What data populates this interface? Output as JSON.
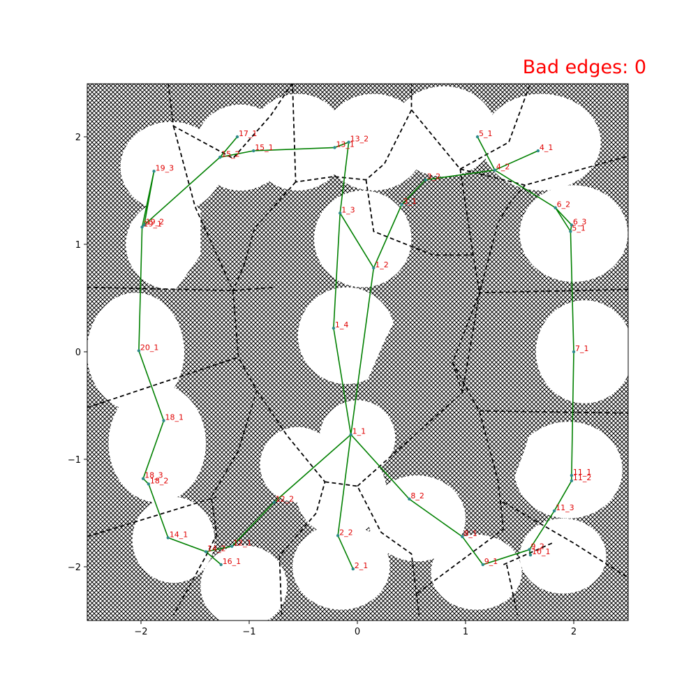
{
  "title": "Bad edges: 0",
  "colors": {
    "title": "#ff0000",
    "route": "#008000",
    "partition": "#000000",
    "label": "#e00000",
    "node": "#2e8b8b",
    "hatch": "#000000"
  },
  "chart_data": {
    "type": "scatter",
    "title": "Bad edges: 0",
    "xlabel": "",
    "ylabel": "",
    "xlim": [
      -2.5,
      2.5
    ],
    "ylim": [
      -2.5,
      2.5
    ],
    "xticks": [
      -2,
      -1,
      0,
      1,
      2
    ],
    "yticks": [
      -2,
      -1,
      0,
      1,
      2
    ],
    "xtick_labels": [
      "−2",
      "−1",
      "0",
      "1",
      "2"
    ],
    "ytick_labels": [
      "−2",
      "−1",
      "0",
      "1",
      "2"
    ],
    "grid": false,
    "nodes": [
      {
        "label": "1_1",
        "x": -0.06,
        "y": -0.77
      },
      {
        "label": "1_2",
        "x": 0.15,
        "y": 0.78
      },
      {
        "label": "1_3",
        "x": -0.16,
        "y": 1.29
      },
      {
        "label": "1_4",
        "x": -0.22,
        "y": 0.22
      },
      {
        "label": "2_1",
        "x": -0.04,
        "y": -2.02
      },
      {
        "label": "2_2",
        "x": -0.18,
        "y": -1.71
      },
      {
        "label": "3_1",
        "x": 0.41,
        "y": 1.37
      },
      {
        "label": "3_2",
        "x": 0.63,
        "y": 1.6
      },
      {
        "label": "4_1",
        "x": 1.67,
        "y": 1.87
      },
      {
        "label": "4_2",
        "x": 1.27,
        "y": 1.69
      },
      {
        "label": "5_1",
        "x": 1.11,
        "y": 2.0
      },
      {
        "label": "5_1",
        "x": 1.97,
        "y": 1.12
      },
      {
        "label": "6_2",
        "x": 1.83,
        "y": 1.34
      },
      {
        "label": "6_3",
        "x": 1.98,
        "y": 1.18
      },
      {
        "label": "7_1",
        "x": 2.0,
        "y": 0.0
      },
      {
        "label": "8_1",
        "x": 0.97,
        "y": -1.72
      },
      {
        "label": "8_2",
        "x": 0.48,
        "y": -1.37
      },
      {
        "label": "9_1",
        "x": 1.16,
        "y": -1.98
      },
      {
        "label": "9_2",
        "x": 1.59,
        "y": -1.84
      },
      {
        "label": "10_1",
        "x": 1.6,
        "y": -1.89
      },
      {
        "label": "11_1",
        "x": 1.98,
        "y": -1.15
      },
      {
        "label": "11_2",
        "x": 1.98,
        "y": -1.2
      },
      {
        "label": "11_3",
        "x": 1.82,
        "y": -1.48
      },
      {
        "label": "12_1",
        "x": -1.16,
        "y": -1.81
      },
      {
        "label": "12_2",
        "x": -0.77,
        "y": -1.4
      },
      {
        "label": "13_1",
        "x": -0.21,
        "y": 1.9
      },
      {
        "label": "13_2",
        "x": -0.08,
        "y": 1.95
      },
      {
        "label": "14_1",
        "x": -1.75,
        "y": -1.73
      },
      {
        "label": "14_2",
        "x": -1.4,
        "y": -1.86
      },
      {
        "label": "15_1",
        "x": -0.96,
        "y": 1.87
      },
      {
        "label": "15_2",
        "x": -1.27,
        "y": 1.81
      },
      {
        "label": "16_1",
        "x": -1.26,
        "y": -1.98
      },
      {
        "label": "17_1",
        "x": -1.11,
        "y": 2.0
      },
      {
        "label": "18_1",
        "x": -1.79,
        "y": -0.64
      },
      {
        "label": "18_2",
        "x": -1.93,
        "y": -1.23
      },
      {
        "label": "18_3",
        "x": -1.98,
        "y": -1.18
      },
      {
        "label": "19_1",
        "x": -1.99,
        "y": 1.16
      },
      {
        "label": "19_2",
        "x": -1.97,
        "y": 1.18
      },
      {
        "label": "19_3",
        "x": -1.88,
        "y": 1.68
      },
      {
        "label": "20_1",
        "x": -2.02,
        "y": 0.01
      }
    ],
    "routes": [
      [
        [
          -0.04,
          -2.02
        ],
        [
          -0.18,
          -1.71
        ],
        [
          -0.06,
          -0.77
        ],
        [
          0.15,
          0.78
        ],
        [
          0.41,
          1.37
        ],
        [
          0.63,
          1.6
        ],
        [
          1.27,
          1.69
        ],
        [
          1.83,
          1.34
        ],
        [
          1.98,
          1.18
        ],
        [
          1.97,
          1.12
        ],
        [
          2.0,
          0.0
        ],
        [
          1.98,
          -1.15
        ],
        [
          1.98,
          -1.2
        ],
        [
          1.82,
          -1.48
        ],
        [
          1.59,
          -1.84
        ],
        [
          1.16,
          -1.98
        ],
        [
          0.97,
          -1.72
        ],
        [
          0.48,
          -1.37
        ],
        [
          -0.06,
          -0.77
        ],
        [
          -0.77,
          -1.4
        ],
        [
          -1.16,
          -1.81
        ],
        [
          -1.4,
          -1.86
        ],
        [
          -1.75,
          -1.73
        ],
        [
          -1.93,
          -1.23
        ],
        [
          -1.98,
          -1.18
        ],
        [
          -1.79,
          -0.64
        ],
        [
          -2.02,
          0.01
        ],
        [
          -1.99,
          1.16
        ],
        [
          -1.97,
          1.18
        ],
        [
          -1.27,
          1.81
        ],
        [
          -0.96,
          1.87
        ],
        [
          -0.21,
          1.9
        ],
        [
          -0.08,
          1.95
        ],
        [
          -0.16,
          1.29
        ],
        [
          -0.22,
          0.22
        ],
        [
          -0.06,
          -0.77
        ]
      ],
      [
        [
          -1.4,
          -1.86
        ],
        [
          -1.26,
          -1.98
        ]
      ],
      [
        [
          -1.27,
          1.81
        ],
        [
          -1.11,
          2.0
        ]
      ],
      [
        [
          -1.99,
          1.16
        ],
        [
          -1.88,
          1.68
        ],
        [
          -1.97,
          1.18
        ]
      ],
      [
        [
          -0.16,
          1.29
        ],
        [
          0.15,
          0.78
        ]
      ],
      [
        [
          1.27,
          1.69
        ],
        [
          1.11,
          2.0
        ]
      ],
      [
        [
          1.27,
          1.69
        ],
        [
          1.67,
          1.87
        ]
      ],
      [
        [
          1.59,
          -1.84
        ],
        [
          1.6,
          -1.89
        ]
      ],
      [
        [
          1.83,
          1.34
        ],
        [
          1.97,
          1.12
        ]
      ]
    ],
    "partitions": [
      [
        [
          -2.5,
          0.6
        ],
        [
          -1.15,
          0.57
        ],
        [
          -0.76,
          0.6
        ]
      ],
      [
        [
          -1.15,
          0.57
        ],
        [
          -1.1,
          -0.05
        ],
        [
          -0.93,
          -0.36
        ],
        [
          -1.1,
          -0.92
        ],
        [
          -1.35,
          -1.35
        ],
        [
          -1.3,
          -1.7
        ],
        [
          -1.4,
          -1.9
        ],
        [
          -1.7,
          -2.45
        ]
      ],
      [
        [
          -2.5,
          -0.52
        ],
        [
          -1.1,
          -0.05
        ]
      ],
      [
        [
          -2.5,
          -1.72
        ],
        [
          -1.3,
          -1.35
        ]
      ],
      [
        [
          -0.93,
          -0.36
        ],
        [
          -0.65,
          -0.78
        ],
        [
          -0.3,
          -1.21
        ],
        [
          -0.38,
          -1.5
        ],
        [
          -0.72,
          -1.9
        ],
        [
          -0.7,
          -2.45
        ]
      ],
      [
        [
          -0.3,
          -1.21
        ],
        [
          0.0,
          -1.25
        ],
        [
          0.22,
          -1.68
        ],
        [
          0.5,
          -1.88
        ],
        [
          0.57,
          -2.45
        ]
      ],
      [
        [
          0.0,
          -1.25
        ],
        [
          0.97,
          -0.38
        ],
        [
          1.13,
          0.55
        ],
        [
          1.07,
          0.9
        ],
        [
          0.95,
          1.7
        ],
        [
          0.5,
          2.25
        ],
        [
          0.5,
          2.5
        ]
      ],
      [
        [
          0.97,
          -0.38
        ],
        [
          0.88,
          -0.1
        ],
        [
          1.13,
          0.55
        ],
        [
          2.5,
          0.58
        ]
      ],
      [
        [
          0.88,
          -0.1
        ],
        [
          1.13,
          -0.56
        ],
        [
          1.3,
          -1.2
        ],
        [
          1.35,
          -1.65
        ],
        [
          0.55,
          -2.25
        ]
      ],
      [
        [
          1.13,
          -0.55
        ],
        [
          2.5,
          -0.57
        ]
      ],
      [
        [
          1.35,
          -1.4
        ],
        [
          2.0,
          -1.78
        ],
        [
          2.5,
          -2.1
        ]
      ],
      [
        [
          1.35,
          -1.98
        ],
        [
          1.8,
          -1.78
        ]
      ],
      [
        [
          1.38,
          -1.98
        ],
        [
          1.48,
          -2.45
        ]
      ],
      [
        [
          0.95,
          1.7
        ],
        [
          1.55,
          1.55
        ],
        [
          2.5,
          1.82
        ]
      ],
      [
        [
          1.55,
          1.55
        ],
        [
          1.42,
          1.4
        ],
        [
          1.3,
          1.2
        ],
        [
          1.13,
          0.55
        ]
      ],
      [
        [
          0.95,
          1.7
        ],
        [
          1.4,
          1.95
        ],
        [
          1.6,
          2.5
        ]
      ],
      [
        [
          0.5,
          2.25
        ],
        [
          0.25,
          1.75
        ],
        [
          0.08,
          1.6
        ],
        [
          -0.22,
          1.63
        ],
        [
          -0.57,
          1.58
        ],
        [
          -0.6,
          2.5
        ]
      ],
      [
        [
          0.08,
          1.6
        ],
        [
          0.15,
          1.12
        ],
        [
          0.7,
          0.9
        ],
        [
          1.07,
          0.9
        ]
      ],
      [
        [
          -0.57,
          1.58
        ],
        [
          -0.95,
          1.15
        ],
        [
          -1.05,
          0.8
        ],
        [
          -1.15,
          0.57
        ]
      ],
      [
        [
          -0.6,
          2.5
        ],
        [
          -0.8,
          2.2
        ],
        [
          -1.15,
          1.8
        ],
        [
          -1.7,
          2.1
        ],
        [
          -1.75,
          2.5
        ]
      ],
      [
        [
          -1.7,
          2.1
        ],
        [
          -1.5,
          1.35
        ],
        [
          -1.15,
          0.57
        ]
      ]
    ],
    "obstacles": [
      [
        [
          -1.45,
          1.3
        ],
        [
          -0.7,
          1.4
        ],
        [
          -0.4,
          0.85
        ],
        [
          -0.7,
          0.7
        ],
        [
          -0.6,
          0.4
        ],
        [
          -0.68,
          0.2
        ],
        [
          -0.75,
          0.0
        ],
        [
          -0.6,
          -0.3
        ],
        [
          -0.82,
          -0.55
        ],
        [
          -1.02,
          -0.9
        ],
        [
          -1.2,
          -1.2
        ],
        [
          -1.4,
          -1.4
        ],
        [
          -1.4,
          -0.6
        ],
        [
          -1.6,
          -0.2
        ],
        [
          -1.55,
          0.3
        ],
        [
          -1.7,
          0.55
        ],
        [
          -1.45,
          0.9
        ]
      ],
      [
        [
          0.5,
          0.7
        ],
        [
          0.75,
          1.05
        ],
        [
          1.0,
          1.2
        ],
        [
          1.4,
          1.1
        ],
        [
          1.55,
          0.75
        ],
        [
          1.6,
          0.4
        ],
        [
          1.55,
          0.1
        ],
        [
          1.55,
          -0.25
        ],
        [
          1.65,
          -0.55
        ],
        [
          1.55,
          -0.9
        ],
        [
          1.4,
          -1.3
        ],
        [
          1.2,
          -1.2
        ],
        [
          0.95,
          -1.25
        ],
        [
          0.6,
          -0.85
        ],
        [
          0.3,
          -0.6
        ],
        [
          0.1,
          -0.25
        ],
        [
          0.25,
          0.1
        ],
        [
          0.4,
          0.4
        ]
      ]
    ],
    "ellipses": [
      [
        -1.72,
        1.72,
        0.47,
        0.42
      ],
      [
        -1.72,
        1.0,
        0.42,
        0.42
      ],
      [
        -2.05,
        0.0,
        0.45,
        0.55
      ],
      [
        -1.85,
        -0.85,
        0.45,
        0.55
      ],
      [
        -1.7,
        -1.75,
        0.38,
        0.4
      ],
      [
        -1.05,
        -2.18,
        0.4,
        0.38
      ],
      [
        -0.15,
        -2.0,
        0.45,
        0.4
      ],
      [
        -0.15,
        -1.3,
        0.42,
        0.42
      ],
      [
        0.15,
        1.95,
        0.48,
        0.45
      ],
      [
        0.05,
        1.05,
        0.45,
        0.45
      ],
      [
        -0.1,
        0.15,
        0.45,
        0.45
      ],
      [
        -1.08,
        1.9,
        0.42,
        0.4
      ],
      [
        0.8,
        2.05,
        0.48,
        0.42
      ],
      [
        1.7,
        1.95,
        0.55,
        0.45
      ],
      [
        2.0,
        1.1,
        0.5,
        0.45
      ],
      [
        2.1,
        0.0,
        0.45,
        0.48
      ],
      [
        1.95,
        -1.1,
        0.5,
        0.45
      ],
      [
        1.9,
        -1.9,
        0.4,
        0.35
      ],
      [
        1.1,
        -2.05,
        0.42,
        0.35
      ],
      [
        0.55,
        -1.55,
        0.45,
        0.4
      ],
      [
        -0.55,
        -1.05,
        0.35,
        0.35
      ],
      [
        0.0,
        -0.8,
        0.35,
        0.35
      ],
      [
        -0.55,
        1.95,
        0.45,
        0.45
      ]
    ]
  }
}
